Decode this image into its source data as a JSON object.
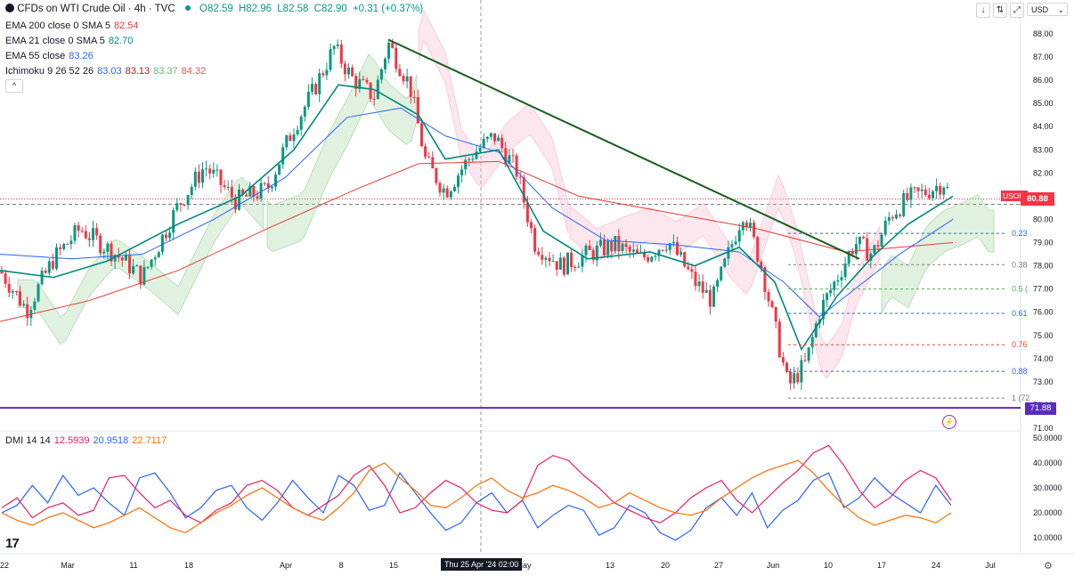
{
  "header": {
    "title": "CFDs on WTI Crude Oil · 4h · TVC",
    "ohlc": {
      "o": "O82.59",
      "h": "H82.96",
      "l": "L82.58",
      "c": "C82.90",
      "chg": "+0.31 (+0.37%)"
    },
    "ema200": {
      "label": "EMA 200 close 0 SMA 5",
      "value": "82.54"
    },
    "ema21": {
      "label": "EMA 21 close 0 SMA 5",
      "value": "82.70"
    },
    "ema55": {
      "label": "EMA 55 close",
      "value": "83.26"
    },
    "ichimoku": {
      "label": "Ichimoku 9 26 52 26",
      "v1": "83.03",
      "v2": "83.13",
      "v3": "83.37",
      "v4": "84.32"
    },
    "collapse": "^",
    "currency": "USD"
  },
  "dmi": {
    "label": "DMI 14 14",
    "v1": "12.5939",
    "v2": "20.9518",
    "v3": "22.7117"
  },
  "symbol_tag": "USOIL",
  "price_tag": "80.88",
  "line_tag": "71.88",
  "cursor_date": "Thu 25 Apr '24   02:00",
  "logo": "17",
  "colors": {
    "up": "#089981",
    "down": "#f23645",
    "ema200": "#e53935",
    "ema21": "#00897b",
    "ema55": "#2962ff",
    "trend": "#1b5e20",
    "support": "#5b2bbf",
    "dmi_plus": "#2962ff",
    "dmi_minus": "#e91e63",
    "adx": "#ff6d00"
  },
  "chart_data": [
    {
      "type": "candlestick",
      "title": "CFDs on WTI Crude Oil · 4h · TVC",
      "y_axis_ticks": [
        "88.00",
        "87.00",
        "86.00",
        "85.00",
        "84.00",
        "83.00",
        "82.00",
        "81.00",
        "80.00",
        "79.00",
        "78.00",
        "77.00",
        "76.00",
        "75.00",
        "74.00",
        "73.00",
        "72.00",
        "71.00"
      ],
      "ylim": [
        71,
        88.2
      ],
      "x_axis_ticks": [
        "22",
        "Mar",
        "11",
        "18",
        "Apr",
        "8",
        "15",
        "May",
        "13",
        "20",
        "27",
        "Jun",
        "10",
        "17",
        "24",
        "Jul"
      ],
      "series": [
        {
          "name": "Price",
          "points": [
            [
              0,
              77.8
            ],
            [
              30,
              76.1
            ],
            [
              60,
              78.3
            ],
            [
              90,
              79.6
            ],
            [
              130,
              78.5
            ],
            [
              160,
              77.5
            ],
            [
              200,
              80.6
            ],
            [
              230,
              82.3
            ],
            [
              265,
              80.8
            ],
            [
              300,
              81.3
            ],
            [
              330,
              84.0
            ],
            [
              350,
              85.4
            ],
            [
              375,
              87.4
            ],
            [
              395,
              86.1
            ],
            [
              420,
              85.3
            ],
            [
              436,
              87.6
            ],
            [
              460,
              85.8
            ],
            [
              478,
              82.5
            ],
            [
              500,
              81.2
            ],
            [
              530,
              82.8
            ],
            [
              555,
              83.6
            ],
            [
              580,
              82.1
            ],
            [
              600,
              79.0
            ],
            [
              630,
              78.0
            ],
            [
              660,
              78.5
            ],
            [
              690,
              78.9
            ],
            [
              720,
              78.3
            ],
            [
              750,
              79.1
            ],
            [
              780,
              77.3
            ],
            [
              800,
              76.5
            ],
            [
              835,
              80.4
            ],
            [
              855,
              78.0
            ],
            [
              875,
              74.5
            ],
            [
              885,
              72.8
            ],
            [
              905,
              73.8
            ],
            [
              920,
              76.0
            ],
            [
              940,
              77.5
            ],
            [
              960,
              79.0
            ],
            [
              980,
              78.5
            ],
            [
              1000,
              80.2
            ],
            [
              1020,
              80.9
            ],
            [
              1040,
              81.2
            ],
            [
              1060,
              81.6
            ],
            [
              1068,
              80.9
            ]
          ]
        },
        {
          "name": "EMA 200",
          "points": [
            [
              0,
              75.6
            ],
            [
              100,
              76.5
            ],
            [
              200,
              77.8
            ],
            [
              300,
              79.6
            ],
            [
              400,
              81.3
            ],
            [
              470,
              82.4
            ],
            [
              560,
              82.5
            ],
            [
              650,
              81.0
            ],
            [
              750,
              80.3
            ],
            [
              850,
              79.6
            ],
            [
              950,
              78.6
            ],
            [
              1070,
              79.0
            ]
          ]
        },
        {
          "name": "EMA 21",
          "points": [
            [
              0,
              77.8
            ],
            [
              60,
              77.5
            ],
            [
              120,
              78.2
            ],
            [
              200,
              79.8
            ],
            [
              270,
              81.0
            ],
            [
              330,
              83.0
            ],
            [
              380,
              85.8
            ],
            [
              420,
              85.6
            ],
            [
              470,
              84.5
            ],
            [
              500,
              82.6
            ],
            [
              560,
              83.0
            ],
            [
              610,
              79.5
            ],
            [
              660,
              78.3
            ],
            [
              730,
              78.6
            ],
            [
              780,
              78.0
            ],
            [
              830,
              78.8
            ],
            [
              870,
              77.3
            ],
            [
              900,
              74.4
            ],
            [
              940,
              76.7
            ],
            [
              980,
              78.4
            ],
            [
              1020,
              79.8
            ],
            [
              1070,
              81.0
            ]
          ]
        },
        {
          "name": "EMA 55",
          "points": [
            [
              0,
              78.5
            ],
            [
              80,
              78.3
            ],
            [
              160,
              78.5
            ],
            [
              240,
              80.0
            ],
            [
              320,
              81.8
            ],
            [
              390,
              84.4
            ],
            [
              450,
              84.8
            ],
            [
              500,
              83.6
            ],
            [
              560,
              82.9
            ],
            [
              620,
              80.5
            ],
            [
              680,
              79.1
            ],
            [
              760,
              78.9
            ],
            [
              830,
              78.6
            ],
            [
              880,
              77.3
            ],
            [
              920,
              75.8
            ],
            [
              960,
              77.0
            ],
            [
              1010,
              78.5
            ],
            [
              1070,
              80.0
            ]
          ]
        },
        {
          "name": "Trendline",
          "points": [
            [
              436,
              87.75
            ],
            [
              965,
              78.3
            ]
          ]
        },
        {
          "name": "Support",
          "points": [
            [
              0,
              71.88
            ],
            [
              1146,
              71.88
            ]
          ]
        }
      ],
      "fib_levels": [
        {
          "label": "0.23",
          "value": 79.4
        },
        {
          "label": "0.38",
          "value": 78.05
        },
        {
          "label": "0.5 (",
          "value": 77.0
        },
        {
          "label": "0.61",
          "value": 75.95
        },
        {
          "label": "0.76",
          "value": 74.6
        },
        {
          "label": "0.88",
          "value": 73.45
        },
        {
          "label": "1 (72",
          "value": 72.3
        }
      ]
    },
    {
      "type": "line",
      "title": "DMI 14 14",
      "y_axis_ticks": [
        "50.0000",
        "40.0000",
        "30.0000",
        "20.0000",
        "10.0000"
      ],
      "ylim": [
        5,
        50
      ],
      "series": [
        {
          "name": "+DI",
          "values": [
            20,
            23,
            31,
            24,
            35,
            27,
            30,
            24,
            19,
            34,
            36,
            28,
            18,
            22,
            29,
            31,
            22,
            17,
            24,
            33,
            26,
            20,
            35,
            31,
            21,
            23,
            36,
            28,
            20,
            13,
            16,
            24,
            28,
            20,
            25,
            14,
            19,
            23,
            21,
            11,
            14,
            23,
            20,
            12,
            9,
            13,
            22,
            26,
            19,
            28,
            14,
            21,
            25,
            33,
            36,
            22,
            26,
            34,
            28,
            24,
            20,
            31,
            23
          ]
        },
        {
          "name": "-DI",
          "values": [
            22,
            26,
            18,
            22,
            24,
            19,
            21,
            34,
            35,
            28,
            22,
            25,
            19,
            16,
            21,
            24,
            31,
            33,
            29,
            22,
            19,
            23,
            27,
            35,
            39,
            31,
            20,
            22,
            28,
            33,
            30,
            24,
            21,
            20,
            25,
            39,
            43,
            41,
            35,
            30,
            24,
            21,
            18,
            16,
            20,
            26,
            30,
            33,
            25,
            20,
            26,
            32,
            37,
            44,
            47,
            39,
            29,
            22,
            26,
            33,
            37,
            34,
            25
          ]
        },
        {
          "name": "ADX",
          "values": [
            20,
            17,
            15,
            18,
            20,
            17,
            14,
            16,
            19,
            22,
            18,
            14,
            12,
            16,
            20,
            23,
            27,
            30,
            26,
            22,
            19,
            17,
            22,
            28,
            37,
            40,
            34,
            29,
            23,
            22,
            26,
            31,
            34,
            29,
            26,
            28,
            31,
            29,
            26,
            22,
            24,
            28,
            25,
            22,
            20,
            19,
            21,
            26,
            30,
            34,
            37,
            39,
            41,
            36,
            29,
            23,
            18,
            15,
            17,
            19,
            18,
            16,
            20
          ]
        }
      ]
    }
  ]
}
